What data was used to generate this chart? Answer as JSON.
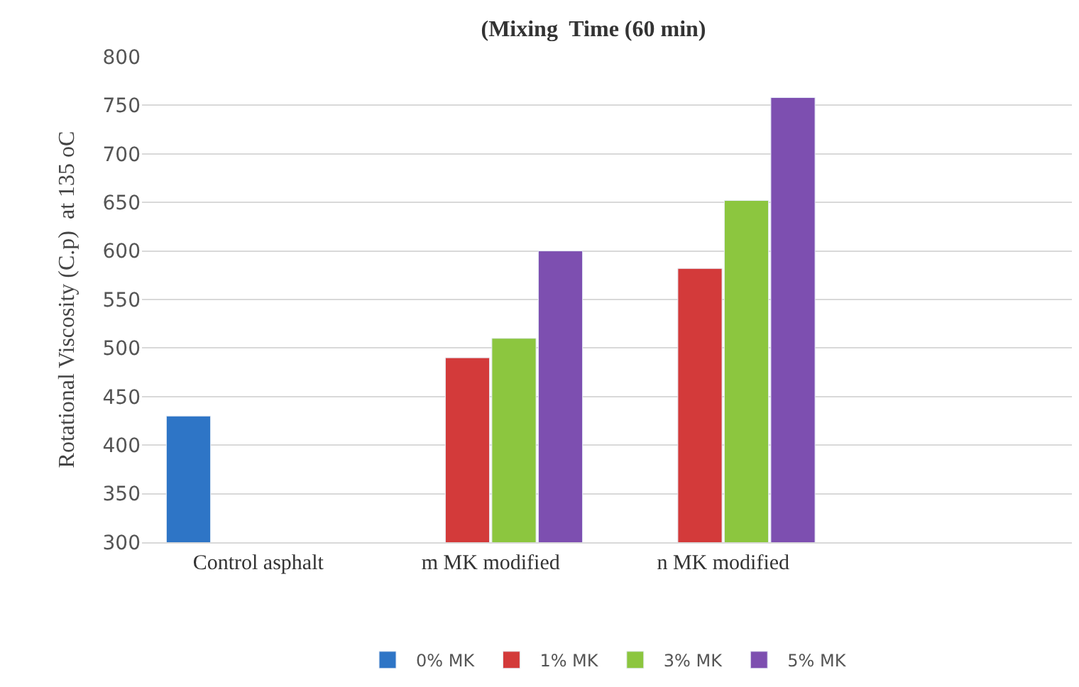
{
  "chart_data": {
    "type": "bar",
    "title": "(Mixing  Time (60 min)",
    "ylabel": "Rotational Viscosity (C.p)  at 135 oC",
    "categories": [
      "Control asphalt",
      "m MK modified",
      "n MK modified",
      null
    ],
    "series": [
      {
        "name": "0% MK",
        "color": "#2e75c6",
        "values": [
          430,
          null,
          null,
          null
        ]
      },
      {
        "name": "1% MK",
        "color": "#d33a3a",
        "values": [
          null,
          490,
          582,
          null
        ]
      },
      {
        "name": "3% MK",
        "color": "#8cc63f",
        "values": [
          null,
          510,
          652,
          null
        ]
      },
      {
        "name": "5% MK",
        "color": "#7d4fb0",
        "values": [
          null,
          600,
          758,
          null
        ]
      }
    ],
    "ylim": [
      300,
      800
    ],
    "yticks": [
      300,
      350,
      400,
      450,
      500,
      550,
      600,
      650,
      700,
      750,
      800
    ],
    "grid": "y",
    "legend": "bottom"
  }
}
